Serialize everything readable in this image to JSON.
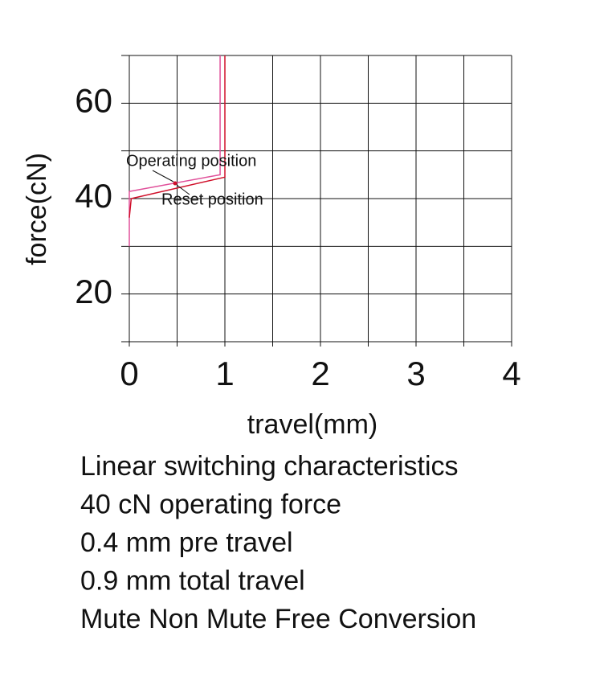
{
  "chart_data": {
    "type": "line",
    "x_label": "travel(mm)",
    "y_label": "force(cN)",
    "xlim": [
      0,
      4
    ],
    "xticks": [
      0,
      1,
      2,
      3,
      4
    ],
    "x_minor_grid": [
      0.5,
      1.5,
      2.5,
      3.5
    ],
    "ylim": [
      10,
      70
    ],
    "yticks": [
      20,
      40,
      60
    ],
    "y_minor_grid": [
      10,
      30,
      50,
      70
    ],
    "grid": true,
    "series": [
      {
        "color": "#e0509a",
        "x": [
          0,
          0,
          0.95,
          0.95
        ],
        "values": [
          30,
          41.5,
          45,
          70
        ]
      },
      {
        "color": "#d0102a",
        "x": [
          0,
          0.02,
          1.0,
          1.0
        ],
        "values": [
          36,
          40,
          44.5,
          70
        ]
      }
    ],
    "annotations": [
      {
        "text": "Operating position"
      },
      {
        "text": "Reset position"
      }
    ],
    "notes": [
      "Linear switching characteristics",
      "40 cN operating force",
      "0.4 mm pre travel",
      "0.9 mm total travel",
      "Mute Non Mute Free Conversion"
    ]
  }
}
